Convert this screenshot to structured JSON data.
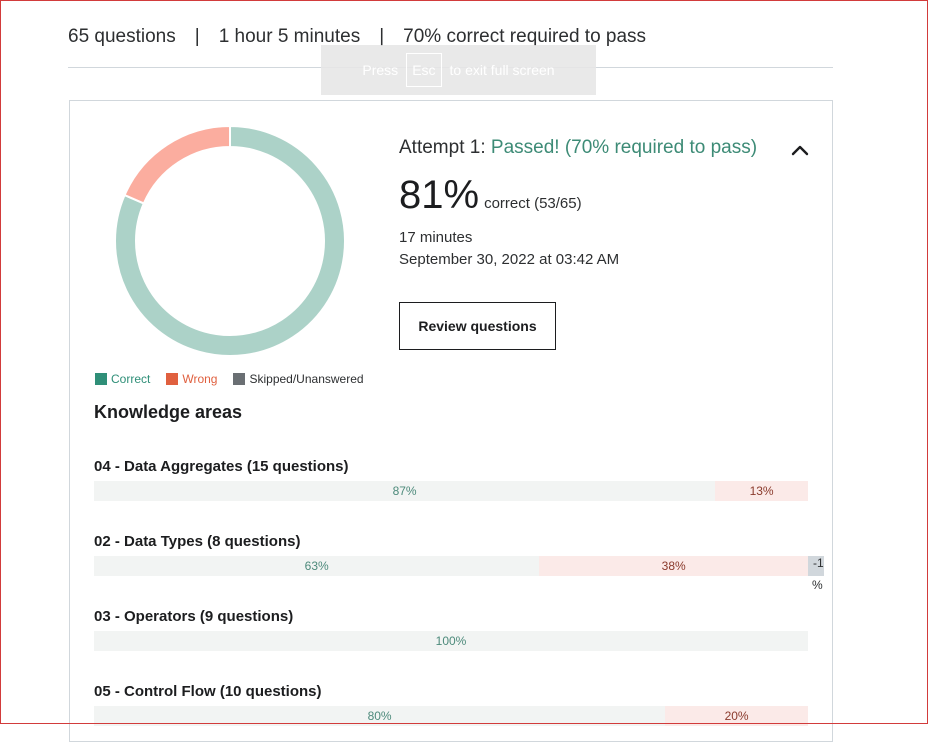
{
  "summary": {
    "questions": "65 questions",
    "separator": "|",
    "time_limit": "1 hour 5 minutes",
    "pass_requirement": "70% correct required to pass"
  },
  "fullscreen_notice": {
    "prefix": "Press",
    "key": "Esc",
    "suffix": "to exit full screen"
  },
  "attempt": {
    "label": "Attempt 1:",
    "status": "Passed! (70% required to pass)",
    "score_percent": "81%",
    "score_detail": "correct (53/65)",
    "duration": "17 minutes",
    "date": "September 30, 2022 at 03:42 AM",
    "review_button": "Review questions",
    "collapse_icon": "chevron-up-icon"
  },
  "chart_data": {
    "type": "pie",
    "categories": [
      "Correct",
      "Wrong",
      "Skipped/Unanswered"
    ],
    "values": [
      53,
      12,
      0
    ],
    "colors": [
      "#acd2c8",
      "#fbad9f",
      "#6a6f73"
    ]
  },
  "legend": {
    "correct": "Correct",
    "wrong": "Wrong",
    "skipped": "Skipped/Unanswered",
    "colors": {
      "correct": "#2f8f78",
      "wrong": "#e0603f",
      "skipped": "#6a6f73"
    }
  },
  "knowledge_areas": {
    "title": "Knowledge areas",
    "areas": [
      {
        "title": "04 - Data Aggregates (15 questions)",
        "correct": 87,
        "correct_label": "87%",
        "wrong": 13,
        "wrong_label": "13%"
      },
      {
        "title": "02 - Data Types (8 questions)",
        "correct": 63,
        "correct_label": "63%",
        "wrong": 38,
        "wrong_label": "38%",
        "skipped_label": "-1",
        "skipped_unit": "%"
      },
      {
        "title": "03 - Operators (9 questions)",
        "correct": 100,
        "correct_label": "100%"
      },
      {
        "title": "05 - Control Flow (10 questions)",
        "correct": 80,
        "correct_label": "80%",
        "wrong": 20,
        "wrong_label": "20%"
      }
    ]
  }
}
